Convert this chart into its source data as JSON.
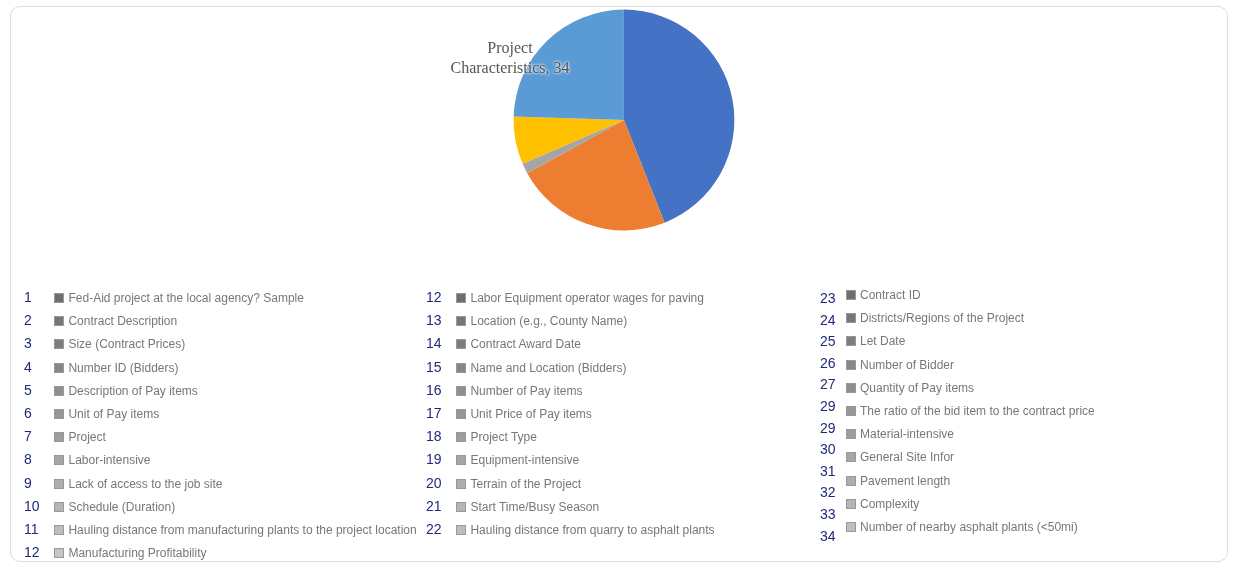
{
  "chart_data": {
    "type": "pie",
    "categories": [
      null,
      null,
      null,
      null,
      null
    ],
    "values": [
      44,
      23,
      1.5,
      7,
      24.5
    ],
    "colors": [
      "#4472c4",
      "#ed7d31",
      "#a5a5a5",
      "#ffc000",
      "#5b9bd5"
    ],
    "legend": false,
    "annotations": [
      "Project Characteristics, 34",
      "1 Fed-Aid project at the local agency? Sample",
      "2 Contract Description",
      "3 Size (Contract Prices)",
      "4 Number ID (Bidders)",
      "5 Description of Pay items",
      "6 Unit of Pay items",
      "7 Project",
      "8 Labor-intensive",
      "9 Lack of access to the job site",
      "10 Schedule (Duration)",
      "11 Hauling distance from manufacturing plants to the project location",
      "12 Manufacturing Profitability",
      "12 Labor Equipment operator wages for paving",
      "13 Location (e.g., County Name)",
      "14 Contract Award Date",
      "15 Name and Location (Bidders)",
      "16 Number of Pay items",
      "17 Unit Price of Pay items",
      "18 Project Type",
      "19 Equipment-intensive",
      "20 Terrain of the Project",
      "21 Start Time/Busy Season",
      "22 Hauling distance from quarry to asphalt plants",
      "23",
      "24",
      "25",
      "26",
      "27",
      "29",
      "29",
      "30",
      "31",
      "32",
      "33",
      "34",
      "Contract ID",
      "Districts/Regions of the Project",
      "Let Date",
      "Number of Bidder",
      "Quantity of Pay items",
      "The ratio of the bid item to the contract price",
      "Material-intensive",
      "General Site Infor",
      "Pavement length",
      "Complexity",
      "Number of nearby asphalt plants (<50mi)"
    ]
  }
}
